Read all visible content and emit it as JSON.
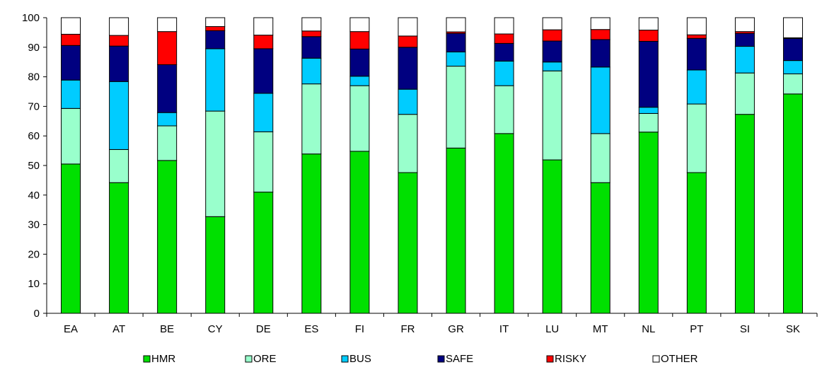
{
  "chart_data": {
    "type": "bar",
    "stacked": true,
    "title": "",
    "xlabel": "",
    "ylabel": "",
    "ylim": [
      0,
      100
    ],
    "yticks": [
      0,
      10,
      20,
      30,
      40,
      50,
      60,
      70,
      80,
      90,
      100
    ],
    "grid": false,
    "legend_position": "bottom",
    "categories": [
      "EA",
      "AT",
      "BE",
      "CY",
      "DE",
      "ES",
      "FI",
      "FR",
      "GR",
      "IT",
      "LU",
      "MT",
      "NL",
      "PT",
      "SI",
      "SK"
    ],
    "series": [
      {
        "name": "HMR",
        "color": "#00e000",
        "values": [
          50.5,
          44.2,
          51.7,
          32.7,
          41.0,
          53.9,
          54.8,
          47.6,
          55.9,
          60.8,
          51.9,
          44.2,
          61.3,
          47.6,
          67.3,
          74.2
        ]
      },
      {
        "name": "ORE",
        "color": "#99ffcc",
        "values": [
          18.8,
          11.2,
          11.7,
          35.7,
          20.4,
          23.7,
          22.2,
          19.7,
          27.7,
          16.2,
          30.1,
          16.6,
          6.3,
          23.2,
          14.0,
          6.8
        ]
      },
      {
        "name": "BUS",
        "color": "#00ccff",
        "values": [
          9.6,
          23.0,
          4.5,
          21.1,
          13.0,
          8.7,
          3.2,
          8.5,
          4.8,
          8.3,
          3.0,
          22.5,
          2.1,
          11.5,
          9.0,
          4.5
        ]
      },
      {
        "name": "SAFE",
        "color": "#000080",
        "values": [
          11.7,
          12.0,
          16.2,
          6.1,
          15.1,
          7.3,
          9.2,
          14.2,
          6.3,
          6.0,
          7.1,
          9.3,
          22.3,
          10.7,
          4.4,
          7.5
        ]
      },
      {
        "name": "RISKY",
        "color": "#ff0000",
        "values": [
          3.8,
          3.6,
          11.2,
          1.4,
          4.6,
          1.9,
          5.9,
          3.8,
          0.5,
          3.2,
          3.8,
          3.4,
          3.8,
          1.2,
          0.6,
          0.2
        ]
      },
      {
        "name": "OTHER",
        "color": "#ffffff",
        "values": [
          5.6,
          6.0,
          4.7,
          3.0,
          5.9,
          4.5,
          4.7,
          6.2,
          4.8,
          5.5,
          4.1,
          4.0,
          4.2,
          5.8,
          4.7,
          6.8
        ]
      }
    ]
  }
}
